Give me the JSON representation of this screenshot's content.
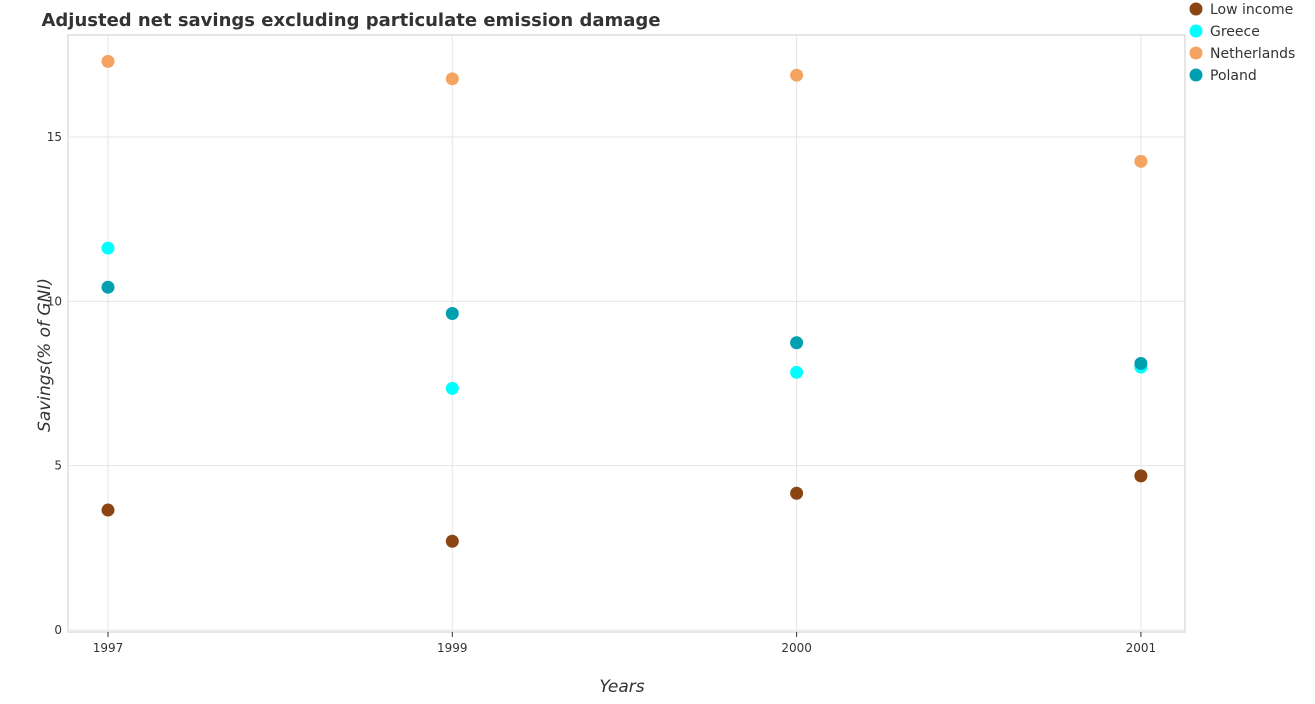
{
  "chart_data": {
    "type": "scatter",
    "title": "Adjusted net savings excluding particulate emission damage",
    "xlabel": "Years",
    "ylabel": "Savings(% of GNI)",
    "categories": [
      "1997",
      "1999",
      "2000",
      "2001"
    ],
    "ylim": [
      0,
      18
    ],
    "yticks": [
      0,
      5,
      10,
      15
    ],
    "ytick_labels": [
      "0",
      "5",
      "10",
      "15"
    ],
    "grid": true,
    "legend_position": "top-right",
    "series": [
      {
        "name": "Low income",
        "color": "#8b4513",
        "values": [
          3.65,
          2.7,
          4.16,
          4.69
        ]
      },
      {
        "name": "Greece",
        "color": "#00ffff",
        "values": [
          11.62,
          7.35,
          7.84,
          8.0
        ]
      },
      {
        "name": "Netherlands",
        "color": "#f4a460",
        "values": [
          17.3,
          16.77,
          16.88,
          14.26
        ]
      },
      {
        "name": "Poland",
        "color": "#00a0b0",
        "values": [
          10.43,
          9.63,
          8.74,
          8.11
        ]
      }
    ]
  }
}
